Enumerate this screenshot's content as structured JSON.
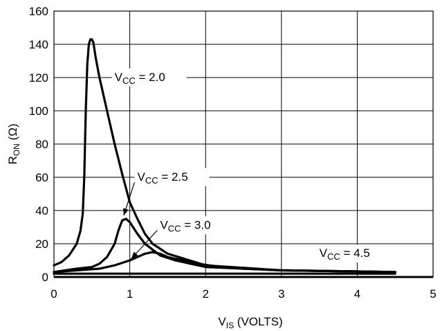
{
  "chart_data": {
    "type": "line",
    "xlabel": "V",
    "xlabel_sub": "IS",
    "xlabel_suffix": " (VOLTS)",
    "ylabel": "R",
    "ylabel_sub": "ON",
    "ylabel_suffix": " (Ω)",
    "xlim": [
      0,
      5
    ],
    "ylim": [
      0,
      160
    ],
    "x_ticks": [
      "0",
      "1",
      "2",
      "3",
      "4",
      "5"
    ],
    "y_ticks": [
      "0",
      "20",
      "40",
      "60",
      "80",
      "100",
      "120",
      "140",
      "160"
    ],
    "grid": true,
    "colors": {
      "line": "#000000",
      "grid": "#000000",
      "background": "#ffffff"
    },
    "series": [
      {
        "name": "VCC = 2.0",
        "label_main": "V",
        "label_sub": "CC",
        "label_suffix": " = 2.0",
        "x": [
          0.0,
          0.1,
          0.2,
          0.3,
          0.35,
          0.38,
          0.4,
          0.42,
          0.44,
          0.46,
          0.48,
          0.5,
          0.52,
          0.55,
          0.6,
          0.7,
          0.8,
          0.9,
          1.0,
          1.1,
          1.2,
          1.3,
          1.5,
          2.0,
          3.0,
          4.5
        ],
        "y": [
          7,
          9,
          13,
          20,
          28,
          38,
          60,
          100,
          128,
          140,
          143,
          143,
          141,
          132,
          120,
          100,
          80,
          62,
          45,
          35,
          26,
          20,
          14,
          7,
          4,
          3
        ]
      },
      {
        "name": "VCC = 2.5",
        "label_main": "V",
        "label_sub": "CC",
        "label_suffix": " = 2.5",
        "x": [
          0.0,
          0.3,
          0.5,
          0.6,
          0.7,
          0.8,
          0.85,
          0.9,
          0.95,
          1.0,
          1.1,
          1.2,
          1.4,
          1.6,
          1.8,
          2.0,
          2.5,
          3.0,
          4.5
        ],
        "y": [
          3,
          5,
          6,
          8,
          12,
          20,
          28,
          34,
          35,
          33,
          26,
          20,
          13,
          10,
          8,
          6,
          5,
          4,
          3
        ]
      },
      {
        "name": "VCC = 3.0",
        "label_main": "V",
        "label_sub": "CC",
        "label_suffix": " = 3.0",
        "x": [
          0.0,
          0.3,
          0.6,
          0.8,
          1.0,
          1.1,
          1.2,
          1.3,
          1.4,
          1.5,
          1.7,
          1.9,
          2.2,
          2.5,
          3.0,
          4.5
        ],
        "y": [
          3,
          4,
          5,
          7,
          10,
          12,
          14,
          15,
          14,
          12,
          10,
          8,
          6,
          5,
          4,
          3
        ]
      },
      {
        "name": "VCC = 4.5",
        "label_main": "V",
        "label_sub": "CC",
        "label_suffix": " = 4.5",
        "x": [
          0.0,
          0.5,
          1.0,
          1.5,
          2.0,
          2.5,
          3.0,
          3.5,
          4.0,
          4.5
        ],
        "y": [
          2,
          2,
          2,
          2,
          2,
          2,
          2,
          2,
          2,
          2
        ]
      }
    ],
    "annotations": [
      {
        "series": 0,
        "text_main": "V",
        "text_sub": "CC",
        "text_suffix": " = 2.0",
        "x": 0.8,
        "y": 118,
        "line_to": [
          2.8,
          118
        ]
      },
      {
        "series": 1,
        "text_main": "V",
        "text_sub": "CC",
        "text_suffix": " = 2.5",
        "x": 1.1,
        "y": 58,
        "line_to": [
          2.8,
          58
        ],
        "arrow_to": [
          0.92,
          37
        ]
      },
      {
        "series": 2,
        "text_main": "V",
        "text_sub": "CC",
        "text_suffix": " = 3.0",
        "x": 1.4,
        "y": 29,
        "arrow_to": [
          1.02,
          11
        ]
      },
      {
        "series": 3,
        "text_main": "V",
        "text_sub": "CC",
        "text_suffix": " = 4.5",
        "x": 3.5,
        "y": 12,
        "line_to": [
          2.9,
          19
        ],
        "line_to_end": [
          4.1,
          19
        ]
      }
    ]
  }
}
